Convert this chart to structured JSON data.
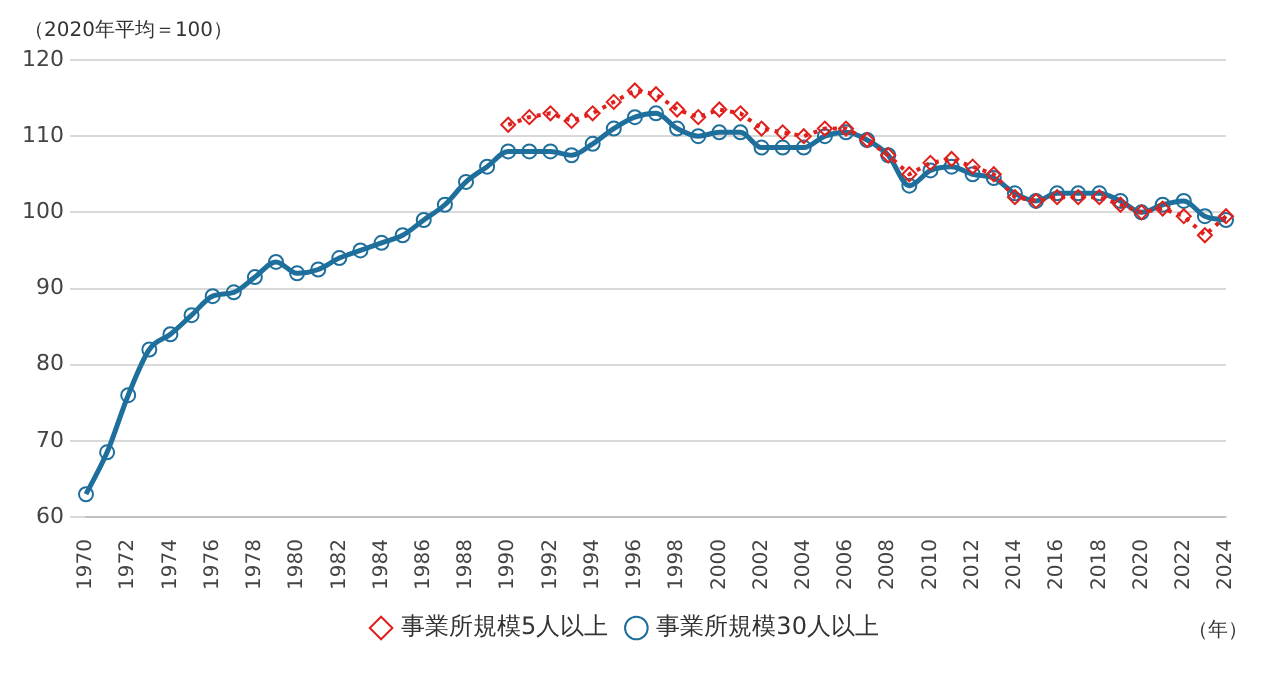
{
  "chart_data": {
    "type": "line",
    "ylabel": "（2020年平均＝100）",
    "xlabel": "（年）",
    "categories": [
      "1970",
      null,
      "1972",
      null,
      "1974",
      null,
      "1976",
      null,
      "1978",
      null,
      "1980",
      null,
      "1982",
      null,
      "1984",
      null,
      "1986",
      null,
      "1988",
      null,
      "1990",
      null,
      "1992",
      null,
      "1994",
      null,
      "1996",
      null,
      "1998",
      null,
      "2000",
      null,
      "2002",
      null,
      "2004",
      null,
      "2006",
      null,
      "2008",
      null,
      "2010",
      null,
      "2012",
      null,
      "2014",
      null,
      "2016",
      null,
      "2018",
      null,
      "2020",
      null,
      "2022",
      null,
      "2024"
    ],
    "series": [
      {
        "name": "事業所規模30人以上",
        "color": "#1f6f9c",
        "marker": "circle",
        "line_style": "solid",
        "values": [
          63,
          68.5,
          76,
          82,
          84,
          86.5,
          89,
          89.5,
          91.5,
          93.5,
          92,
          92.5,
          94,
          95,
          96,
          97,
          99,
          101,
          104,
          106,
          108,
          108,
          108,
          107.5,
          109,
          111,
          112.5,
          113,
          111,
          110,
          110.5,
          110.5,
          108.5,
          108.5,
          108.5,
          110,
          110.5,
          109.5,
          107.5,
          103.5,
          105.5,
          106,
          105,
          104.5,
          102.5,
          101.5,
          102.5,
          102.5,
          102.5,
          101.5,
          100,
          101,
          101.5,
          99.5,
          99
        ]
      },
      {
        "name": "事業所規模5人以上",
        "color": "#e0201c",
        "marker": "diamond",
        "line_style": "dotted",
        "values": [
          null,
          null,
          null,
          null,
          null,
          null,
          null,
          null,
          null,
          null,
          null,
          null,
          null,
          null,
          null,
          null,
          null,
          null,
          null,
          null,
          111.5,
          112.5,
          113,
          112,
          113,
          114.5,
          116,
          115.5,
          113.5,
          112.5,
          113.5,
          113,
          111,
          110.5,
          110,
          111,
          111,
          109.5,
          107.5,
          105,
          106.5,
          107,
          106,
          105,
          102,
          101.5,
          102,
          102,
          102,
          101,
          100,
          100.5,
          99.5,
          97,
          99.5
        ]
      }
    ],
    "ylim": [
      60,
      120
    ],
    "yticks": [
      60,
      70,
      80,
      90,
      100,
      110,
      120
    ],
    "grid": "y",
    "legend": "bottom"
  }
}
